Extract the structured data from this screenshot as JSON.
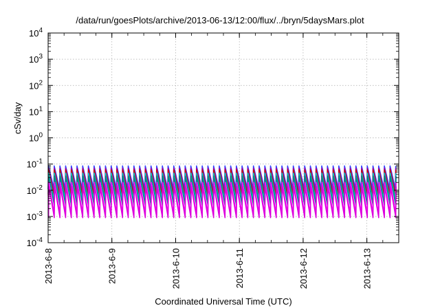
{
  "chart_data": {
    "type": "line",
    "title": "/data/run/goesPlots/archive/2013-06-13/12:00/flux/../bryn/5daysMars.plot",
    "xlabel": "Coordinated Universal Time (UTC)",
    "ylabel": "cSv/day",
    "y_scale": "log",
    "ylim": [
      0.0001,
      10000
    ],
    "y_ticks": [
      {
        "value": 0.0001,
        "base": "10",
        "exp": "-4"
      },
      {
        "value": 0.001,
        "base": "10",
        "exp": "-3"
      },
      {
        "value": 0.01,
        "base": "10",
        "exp": "-2"
      },
      {
        "value": 0.1,
        "base": "10",
        "exp": "-1"
      },
      {
        "value": 1,
        "base": "10",
        "exp": "0"
      },
      {
        "value": 10,
        "base": "10",
        "exp": "1"
      },
      {
        "value": 100,
        "base": "10",
        "exp": "2"
      },
      {
        "value": 1000,
        "base": "10",
        "exp": "3"
      },
      {
        "value": 10000,
        "base": "10",
        "exp": "4"
      }
    ],
    "x_ticks": [
      "2013-6-8",
      "2013-6-9",
      "2013-6-10",
      "2013-6-11",
      "2013-6-12",
      "2013-6-13"
    ],
    "xlim": [
      "2013-06-08T00:00",
      "2013-06-13T12:00"
    ],
    "grid": true,
    "oscillation": {
      "cycles_per_day": 11.2
    },
    "series": [
      {
        "color": "#3344ff",
        "peak": 0.085,
        "trough": 0.011
      },
      {
        "color": "#9900aa",
        "peak": 0.07,
        "trough": 0.007
      },
      {
        "color": "#cc0000",
        "peak": 0.06,
        "trough": 0.006
      },
      {
        "color": "#00cccc",
        "peak": 0.045,
        "trough": 0.004
      },
      {
        "color": "#008888",
        "peak": 0.035,
        "trough": 0.0028
      },
      {
        "color": "#ff00ff",
        "peak": 0.02,
        "trough": 0.0012
      },
      {
        "color": "#dd00dd",
        "peak": 0.014,
        "trough": 0.0009
      }
    ]
  }
}
